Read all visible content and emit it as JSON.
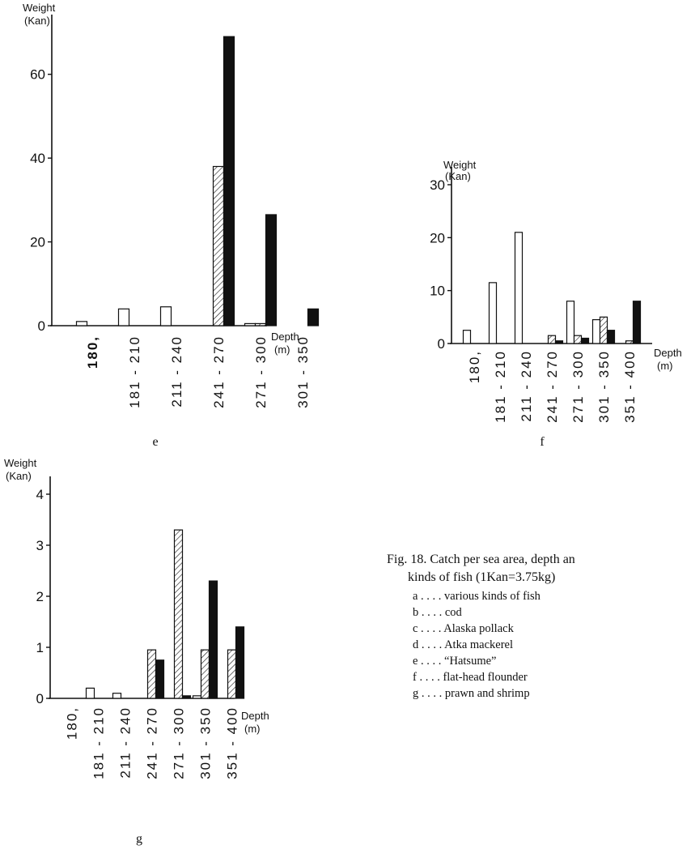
{
  "chart_data": [
    {
      "type": "bar",
      "panel": "e",
      "ylabel": [
        "Weight",
        "(Kan)"
      ],
      "xlabel": [
        "Depth",
        "(m)"
      ],
      "ylim": [
        0,
        70
      ],
      "yticks": [
        0,
        20,
        40,
        60
      ],
      "categories": [
        "180,",
        "181 - 210",
        "211 - 240",
        "241 - 270",
        "271 - 300",
        "301 - 350"
      ],
      "series": [
        {
          "pattern": "open",
          "values": [
            1,
            4,
            4.5,
            0,
            0.5,
            0
          ]
        },
        {
          "pattern": "hatched",
          "values": [
            0,
            0,
            0,
            38,
            0.5,
            0
          ]
        },
        {
          "pattern": "solid",
          "values": [
            0,
            0,
            0,
            69,
            26.5,
            4
          ]
        }
      ]
    },
    {
      "type": "bar",
      "panel": "f",
      "ylabel": [
        "Weight",
        "(Kan)"
      ],
      "xlabel": [
        "Depth",
        "(m)"
      ],
      "ylim": [
        0,
        30
      ],
      "yticks": [
        0,
        10,
        20,
        30
      ],
      "categories": [
        "180,",
        "181 - 210",
        "211 - 240",
        "241 - 270",
        "271 - 300",
        "301 - 350",
        "351 - 400"
      ],
      "series": [
        {
          "pattern": "open",
          "values": [
            2.5,
            11.5,
            21,
            0,
            8,
            4.5,
            0
          ]
        },
        {
          "pattern": "hatched",
          "values": [
            0,
            0,
            0,
            1.5,
            1.5,
            5,
            0.5
          ]
        },
        {
          "pattern": "solid",
          "values": [
            0,
            0,
            0,
            0.5,
            1,
            2.5,
            8
          ]
        }
      ]
    },
    {
      "type": "bar",
      "panel": "g",
      "ylabel": [
        "Weight",
        "(Kan)"
      ],
      "xlabel": [
        "Depth",
        "(m)"
      ],
      "ylim": [
        0,
        4
      ],
      "yticks": [
        0,
        1,
        2,
        3,
        4
      ],
      "categories": [
        "180,",
        "181 - 210",
        "211 - 240",
        "241 - 270",
        "271 - 300",
        "301 - 350",
        "351 - 400"
      ],
      "series": [
        {
          "pattern": "open",
          "values": [
            0,
            0.2,
            0.1,
            0,
            0,
            0.05,
            0
          ]
        },
        {
          "pattern": "hatched",
          "values": [
            0,
            0,
            0,
            0.95,
            3.3,
            0.95,
            0.95
          ]
        },
        {
          "pattern": "solid",
          "values": [
            0,
            0,
            0,
            0.75,
            0.05,
            2.3,
            1.4
          ]
        }
      ]
    }
  ],
  "caption": {
    "title": "Fig. 18.  Catch per sea area, depth an",
    "title_cont": "kinds of fish (1Kan=3.75kg)",
    "items": [
      "a . . . . various kinds of fish",
      "b . . . . cod",
      "c . . . . Alaska pollack",
      "d . . . . Atka mackerel",
      "e . . . . “Hatsume”",
      "f . . . . flat-head flounder",
      "g . . . . prawn and shrimp"
    ]
  }
}
